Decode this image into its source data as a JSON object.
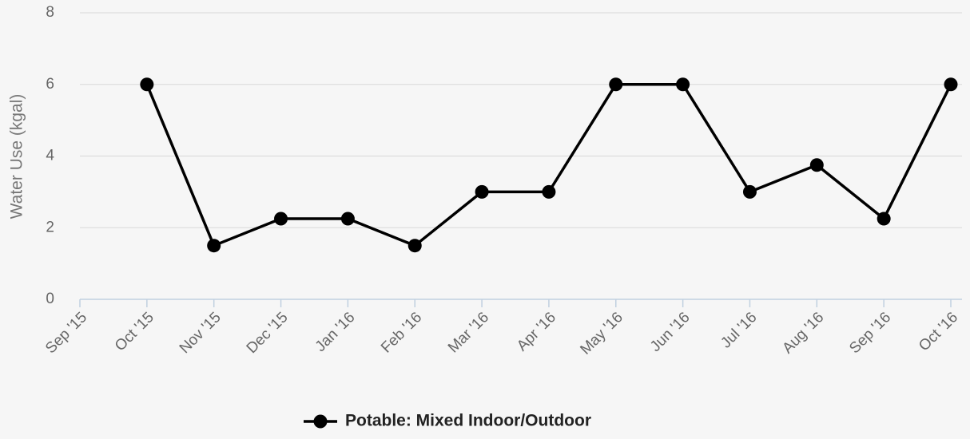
{
  "chart_data": {
    "type": "line",
    "y_axis_label": "Water Use (kgal)",
    "categories": [
      "Sep '15",
      "Oct '15",
      "Nov '15",
      "Dec '15",
      "Jan '16",
      "Feb '16",
      "Mar '16",
      "Apr '16",
      "May '16",
      "Jun '16",
      "Jul '16",
      "Aug '16",
      "Sep '16",
      "Oct '16"
    ],
    "series": [
      {
        "name": "Potable: Mixed Indoor/Outdoor",
        "color": "#000000",
        "values": [
          null,
          6,
          1.5,
          2.25,
          2.25,
          1.5,
          3,
          3,
          6,
          6,
          3,
          3.75,
          2.25,
          6
        ]
      }
    ],
    "ylim": [
      0,
      8
    ],
    "yticks": [
      0,
      2,
      4,
      6,
      8
    ],
    "grid": true,
    "legend": "bottom"
  }
}
